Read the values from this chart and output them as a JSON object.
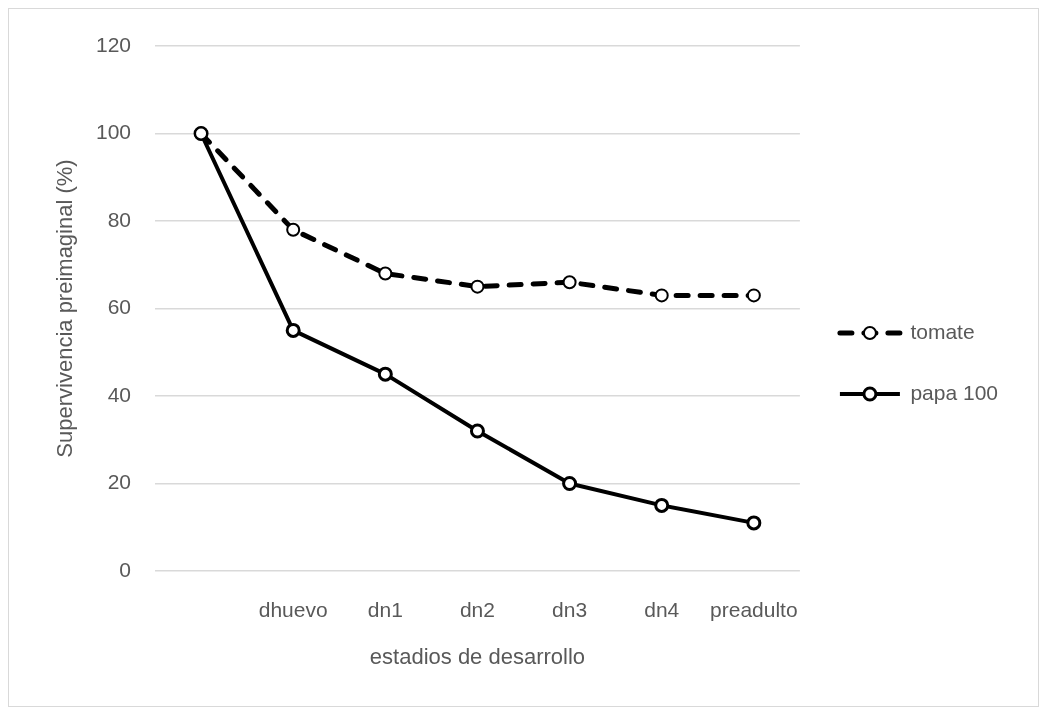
{
  "chart_data": {
    "type": "line",
    "xlabel": "estadios de desarrollo",
    "ylabel": "Supervivencia preimaginal (%)",
    "categories": [
      null,
      "dhuevo",
      "dn1",
      "dn2",
      "dn3",
      "dn4",
      "preadulto"
    ],
    "series": [
      {
        "name": "tomate",
        "color": "#000000",
        "line_style": "dashed",
        "values": [
          100,
          78,
          68,
          65,
          66,
          63,
          63
        ]
      },
      {
        "name": "papa 100",
        "color": "#000000",
        "line_style": "solid",
        "values": [
          100,
          55,
          45,
          32,
          20,
          15,
          11
        ]
      }
    ],
    "ylim": [
      0,
      120
    ],
    "yticks": [
      0,
      20,
      40,
      60,
      80,
      100,
      120
    ],
    "grid": "y",
    "legend": "right",
    "marker": "circle"
  }
}
